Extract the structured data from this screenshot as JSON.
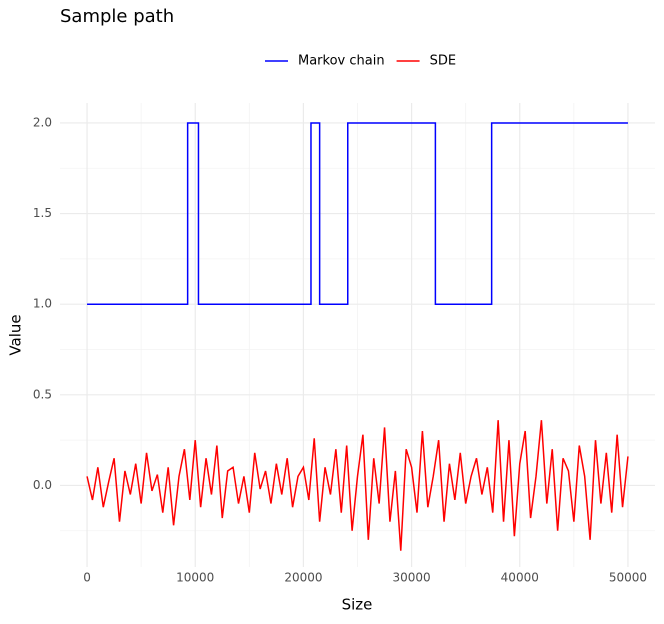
{
  "chart_data": {
    "type": "line",
    "title": "Sample path",
    "xlabel": "Size",
    "ylabel": "Value",
    "xlim": [
      -2500,
      52500
    ],
    "ylim": [
      -0.45,
      2.11
    ],
    "xticks": [
      0,
      10000,
      20000,
      30000,
      40000,
      50000
    ],
    "yticks": [
      {
        "value": 0,
        "label": "0.0"
      },
      {
        "value": 0.5,
        "label": "0.5"
      },
      {
        "value": 1,
        "label": "1.0"
      },
      {
        "value": 1.5,
        "label": "1.5"
      },
      {
        "value": 2,
        "label": "2.0"
      }
    ],
    "x_minor_ticks": [
      5000,
      15000,
      25000,
      35000,
      45000
    ],
    "y_minor_ticks": [
      -0.25,
      0.25,
      0.75,
      1.25,
      1.75
    ],
    "grid": true,
    "legend": "top",
    "series": [
      {
        "name": "Markov chain",
        "color": "#0000ff",
        "x": [
          0,
          9300,
          9300,
          10300,
          10300,
          20700,
          20700,
          21500,
          21500,
          24100,
          24100,
          32200,
          32200,
          37400,
          37400,
          50000
        ],
        "values": [
          1,
          1,
          2,
          2,
          1,
          1,
          2,
          2,
          1,
          1,
          2,
          2,
          1,
          1,
          2,
          2
        ]
      },
      {
        "name": "SDE",
        "color": "#ff0000",
        "x": [
          0,
          500,
          1000,
          1500,
          2000,
          2500,
          3000,
          3500,
          4000,
          4500,
          5000,
          5500,
          6000,
          6500,
          7000,
          7500,
          8000,
          8500,
          9000,
          9500,
          10000,
          10500,
          11000,
          11500,
          12000,
          12500,
          13000,
          13500,
          14000,
          14500,
          15000,
          15500,
          16000,
          16500,
          17000,
          17500,
          18000,
          18500,
          19000,
          19500,
          20000,
          20500,
          21000,
          21500,
          22000,
          22500,
          23000,
          23500,
          24000,
          24500,
          25000,
          25500,
          26000,
          26500,
          27000,
          27500,
          28000,
          28500,
          29000,
          29500,
          30000,
          30500,
          31000,
          31500,
          32000,
          32500,
          33000,
          33500,
          34000,
          34500,
          35000,
          35500,
          36000,
          36500,
          37000,
          37500,
          38000,
          38500,
          39000,
          39500,
          40000,
          40500,
          41000,
          41500,
          42000,
          42500,
          43000,
          43500,
          44000,
          44500,
          45000,
          45500,
          46000,
          46500,
          47000,
          47500,
          48000,
          48500,
          49000,
          49500,
          50000
        ],
        "values": [
          0.05,
          -0.08,
          0.1,
          -0.12,
          0.02,
          0.15,
          -0.2,
          0.08,
          -0.05,
          0.12,
          -0.1,
          0.18,
          -0.03,
          0.06,
          -0.15,
          0.1,
          -0.22,
          0.05,
          0.2,
          -0.08,
          0.25,
          -0.12,
          0.15,
          -0.05,
          0.22,
          -0.18,
          0.08,
          0.1,
          -0.1,
          0.05,
          -0.15,
          0.18,
          -0.02,
          0.08,
          -0.1,
          0.12,
          -0.05,
          0.15,
          -0.12,
          0.05,
          0.1,
          -0.08,
          0.26,
          -0.2,
          0.1,
          -0.05,
          0.2,
          -0.15,
          0.22,
          -0.25,
          0.05,
          0.28,
          -0.3,
          0.15,
          -0.1,
          0.32,
          -0.2,
          0.08,
          -0.36,
          0.2,
          0.1,
          -0.15,
          0.3,
          -0.12,
          0.05,
          0.25,
          -0.2,
          0.12,
          -0.08,
          0.18,
          -0.1,
          0.05,
          0.15,
          -0.05,
          0.1,
          -0.15,
          0.36,
          -0.2,
          0.25,
          -0.28,
          0.12,
          0.3,
          -0.18,
          0.05,
          0.36,
          -0.1,
          0.2,
          -0.25,
          0.15,
          0.08,
          -0.2,
          0.22,
          0.05,
          -0.3,
          0.25,
          -0.1,
          0.18,
          -0.15,
          0.28,
          -0.12,
          0.16
        ]
      }
    ]
  }
}
